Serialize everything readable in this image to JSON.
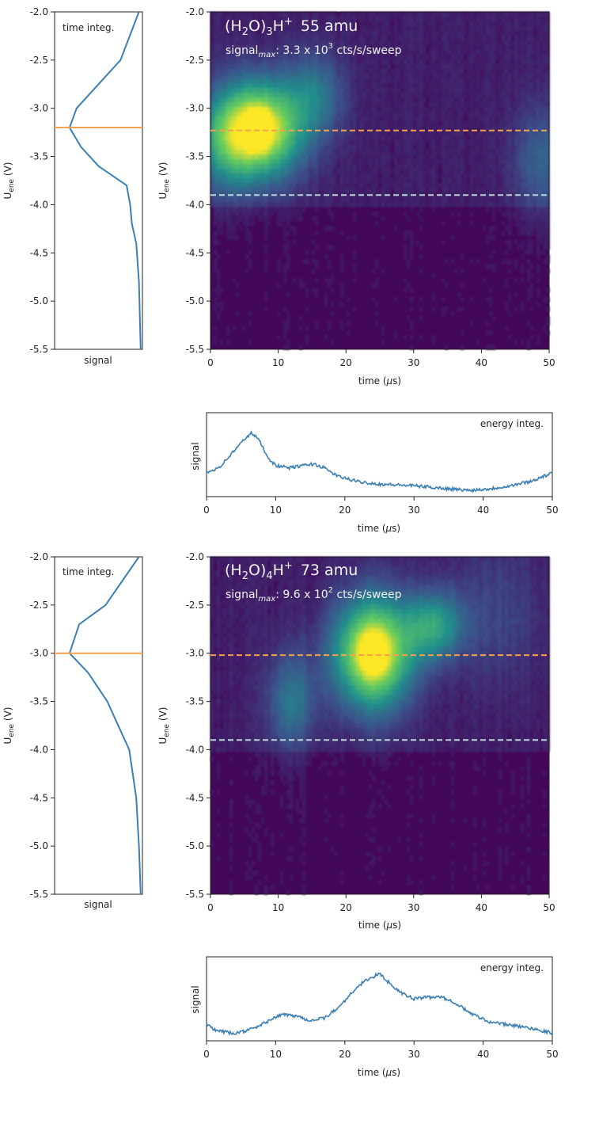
{
  "figures": [
    {
      "title": {
        "prefix": "(H",
        "sub1": "2",
        "mid": "O)",
        "sub2": "3",
        "plus": "H",
        "sup": "+",
        "mass": "55 amu"
      },
      "signal_max": {
        "label": "signal",
        "label_sub": "max",
        "value": ": 3.3 x 10",
        "exp": "3",
        "unit": " cts/s/sweep"
      },
      "time_integ": "time integ.",
      "energy_integ": "energy integ.",
      "ylabel_main": "U",
      "ylabel_sub": "ene",
      "ylabel_unit": " (V)",
      "xlabel_main": "time (",
      "xlabel_mu": "μ",
      "xlabel_unit": "s)",
      "signal_label": "signal",
      "dashed_upper_v": -3.23,
      "dashed_lower_v": -3.9,
      "orange_line_v": -3.2
    },
    {
      "title": {
        "prefix": "(H",
        "sub1": "2",
        "mid": "O)",
        "sub2": "4",
        "plus": "H",
        "sup": "+",
        "mass": "73 amu"
      },
      "signal_max": {
        "label": "signal",
        "label_sub": "max",
        "value": ": 9.6 x 10",
        "exp": "2",
        "unit": " cts/s/sweep"
      },
      "time_integ": "time integ.",
      "energy_integ": "energy integ.",
      "ylabel_main": "U",
      "ylabel_sub": "ene",
      "ylabel_unit": " (V)",
      "xlabel_main": "time (",
      "xlabel_mu": "μ",
      "xlabel_unit": "s)",
      "signal_label": "signal",
      "dashed_upper_v": -3.02,
      "dashed_lower_v": -3.9,
      "orange_line_v": -3.0
    }
  ],
  "chart_data": [
    {
      "type": "line",
      "panel": "time-integrated profile (55 amu)",
      "x_label": "signal",
      "y_label": "Uene (V)",
      "ylim": [
        -5.5,
        -2.0
      ],
      "y_ticks": [
        "-2.0",
        "-2.5",
        "-3.0",
        "-3.5",
        "-4.0",
        "-4.5",
        "-5.0",
        "-5.5"
      ],
      "profile": [
        {
          "u": -2.0,
          "s": 0.96
        },
        {
          "u": -2.5,
          "s": 0.75
        },
        {
          "u": -2.7,
          "s": 0.55
        },
        {
          "u": -3.0,
          "s": 0.25
        },
        {
          "u": -3.2,
          "s": 0.17
        },
        {
          "u": -3.4,
          "s": 0.3
        },
        {
          "u": -3.6,
          "s": 0.5
        },
        {
          "u": -3.8,
          "s": 0.82
        },
        {
          "u": -4.0,
          "s": 0.86
        },
        {
          "u": -4.2,
          "s": 0.88
        },
        {
          "u": -4.4,
          "s": 0.93
        },
        {
          "u": -4.8,
          "s": 0.96
        },
        {
          "u": -5.5,
          "s": 0.98
        }
      ]
    },
    {
      "type": "heatmap",
      "panel": "time vs Uene (55 amu)",
      "xlim": [
        0,
        50
      ],
      "ylim": [
        -5.5,
        -2.0
      ],
      "x_ticks": [
        "0",
        "10",
        "20",
        "30",
        "40",
        "50"
      ],
      "y_ticks": [
        "-2.0",
        "-2.5",
        "-3.0",
        "-3.5",
        "-4.0",
        "-4.5",
        "-5.0",
        "-5.5"
      ],
      "blobs": [
        {
          "t": 7,
          "u": -3.22,
          "st": 4.5,
          "su": 0.35,
          "a": 0.95
        },
        {
          "t": 7,
          "u": -3.22,
          "st": 1.2,
          "su": 0.12,
          "a": 0.5
        },
        {
          "t": 15.5,
          "u": -2.85,
          "st": 3,
          "su": 0.3,
          "a": 0.28
        },
        {
          "t": 2,
          "u": -3.4,
          "st": 3,
          "su": 0.35,
          "a": 0.25
        },
        {
          "t": 49,
          "u": -3.55,
          "st": 3,
          "su": 0.4,
          "a": 0.22
        }
      ]
    },
    {
      "type": "line",
      "panel": "energy-integrated trace (55 amu)",
      "xlim": [
        0,
        50
      ],
      "x_ticks": [
        "0",
        "10",
        "20",
        "30",
        "40",
        "50"
      ],
      "trace": [
        [
          0,
          0.26
        ],
        [
          2,
          0.35
        ],
        [
          4,
          0.55
        ],
        [
          5.5,
          0.7
        ],
        [
          6.5,
          0.78
        ],
        [
          7.5,
          0.7
        ],
        [
          9,
          0.45
        ],
        [
          10,
          0.36
        ],
        [
          12,
          0.33
        ],
        [
          14,
          0.36
        ],
        [
          15.5,
          0.38
        ],
        [
          17,
          0.33
        ],
        [
          19,
          0.22
        ],
        [
          22,
          0.15
        ],
        [
          25,
          0.12
        ],
        [
          30,
          0.1
        ],
        [
          35,
          0.06
        ],
        [
          38,
          0.04
        ],
        [
          41,
          0.06
        ],
        [
          44,
          0.1
        ],
        [
          47,
          0.16
        ],
        [
          49,
          0.23
        ],
        [
          50,
          0.26
        ]
      ]
    },
    {
      "type": "line",
      "panel": "time-integrated profile (73 amu)",
      "x_label": "signal",
      "y_label": "Uene (V)",
      "ylim": [
        -5.5,
        -2.0
      ],
      "y_ticks": [
        "-2.0",
        "-2.5",
        "-3.0",
        "-3.5",
        "-4.0",
        "-4.5",
        "-5.0",
        "-5.5"
      ],
      "profile": [
        {
          "u": -2.0,
          "s": 0.96
        },
        {
          "u": -2.5,
          "s": 0.58
        },
        {
          "u": -2.7,
          "s": 0.28
        },
        {
          "u": -3.0,
          "s": 0.17
        },
        {
          "u": -3.2,
          "s": 0.38
        },
        {
          "u": -3.5,
          "s": 0.6
        },
        {
          "u": -4.0,
          "s": 0.85
        },
        {
          "u": -4.5,
          "s": 0.93
        },
        {
          "u": -5.0,
          "s": 0.96
        },
        {
          "u": -5.5,
          "s": 0.98
        }
      ]
    },
    {
      "type": "heatmap",
      "panel": "time vs Uene (73 amu)",
      "xlim": [
        0,
        50
      ],
      "ylim": [
        -5.5,
        -2.0
      ],
      "x_ticks": [
        "0",
        "10",
        "20",
        "30",
        "40",
        "50"
      ],
      "y_ticks": [
        "-2.0",
        "-2.5",
        "-3.0",
        "-3.5",
        "-4.0",
        "-4.5",
        "-5.0",
        "-5.5"
      ],
      "blobs": [
        {
          "t": 24,
          "u": -3.0,
          "st": 4,
          "su": 0.4,
          "a": 0.95
        },
        {
          "t": 24,
          "u": -3.0,
          "st": 1.2,
          "su": 0.12,
          "a": 0.45
        },
        {
          "t": 33,
          "u": -2.72,
          "st": 3,
          "su": 0.25,
          "a": 0.45
        },
        {
          "t": 12,
          "u": -3.5,
          "st": 2.5,
          "su": 0.35,
          "a": 0.3
        },
        {
          "t": 42,
          "u": -2.6,
          "st": 5,
          "su": 0.5,
          "a": 0.12
        }
      ]
    },
    {
      "type": "line",
      "panel": "energy-integrated trace (73 amu)",
      "xlim": [
        0,
        50
      ],
      "x_ticks": [
        "0",
        "10",
        "20",
        "30",
        "40",
        "50"
      ],
      "trace": [
        [
          0,
          0.18
        ],
        [
          1,
          0.1
        ],
        [
          4,
          0.05
        ],
        [
          7,
          0.12
        ],
        [
          9,
          0.22
        ],
        [
          11,
          0.3
        ],
        [
          13,
          0.28
        ],
        [
          15,
          0.22
        ],
        [
          17,
          0.25
        ],
        [
          19,
          0.38
        ],
        [
          21,
          0.58
        ],
        [
          23,
          0.74
        ],
        [
          25,
          0.82
        ],
        [
          26,
          0.74
        ],
        [
          28,
          0.58
        ],
        [
          30,
          0.5
        ],
        [
          32,
          0.52
        ],
        [
          34,
          0.52
        ],
        [
          36,
          0.45
        ],
        [
          38,
          0.32
        ],
        [
          41,
          0.2
        ],
        [
          44,
          0.16
        ],
        [
          47,
          0.12
        ],
        [
          50,
          0.06
        ]
      ]
    }
  ]
}
